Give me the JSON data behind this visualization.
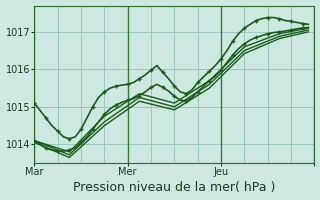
{
  "title": "Pression niveau de la mer( hPa )",
  "background_color": "#cce8e0",
  "grid_color": "#99c8c0",
  "line_color": "#1a5c1a",
  "marker_color": "#1a5c1a",
  "ylim": [
    1013.5,
    1017.7
  ],
  "xlim": [
    0,
    48
  ],
  "yticks": [
    1014,
    1015,
    1016,
    1017
  ],
  "xtick_positions": [
    0,
    16,
    32,
    48
  ],
  "xtick_labels": [
    "Mar",
    "Mer",
    "Jeu",
    ""
  ],
  "vline_positions": [
    0,
    16,
    32,
    48
  ],
  "series": [
    {
      "x": [
        0,
        1,
        2,
        3,
        4,
        5,
        6,
        7,
        8,
        9,
        10,
        11,
        12,
        13,
        14,
        15,
        16,
        17,
        18,
        19,
        20,
        21,
        22,
        23,
        24,
        25,
        26,
        27,
        28,
        29,
        30,
        31,
        32,
        33,
        34,
        35,
        36,
        37,
        38,
        39,
        40,
        41,
        42,
        43,
        44,
        45,
        46,
        47
      ],
      "y": [
        1015.1,
        1014.9,
        1014.7,
        1014.5,
        1014.35,
        1014.2,
        1014.15,
        1014.2,
        1014.4,
        1014.7,
        1015.0,
        1015.25,
        1015.4,
        1015.5,
        1015.55,
        1015.58,
        1015.6,
        1015.65,
        1015.75,
        1015.85,
        1015.98,
        1016.1,
        1015.92,
        1015.75,
        1015.55,
        1015.4,
        1015.35,
        1015.45,
        1015.65,
        1015.8,
        1015.95,
        1016.1,
        1016.28,
        1016.5,
        1016.75,
        1016.95,
        1017.1,
        1017.2,
        1017.3,
        1017.35,
        1017.38,
        1017.38,
        1017.35,
        1017.3,
        1017.28,
        1017.25,
        1017.22,
        1017.2
      ],
      "markers": true,
      "linewidth": 1.2
    },
    {
      "x": [
        0,
        1,
        2,
        3,
        4,
        5,
        6,
        7,
        8,
        9,
        10,
        11,
        12,
        13,
        14,
        15,
        16,
        17,
        18,
        19,
        20,
        21,
        22,
        23,
        24,
        25,
        26,
        27,
        28,
        29,
        30,
        31,
        32,
        33,
        34,
        35,
        36,
        37,
        38,
        39,
        40,
        41,
        42,
        43,
        44,
        45,
        46,
        47
      ],
      "y": [
        1014.1,
        1014.0,
        1013.9,
        1013.85,
        1013.82,
        1013.82,
        1013.85,
        1013.9,
        1014.05,
        1014.2,
        1014.4,
        1014.6,
        1014.8,
        1014.95,
        1015.05,
        1015.12,
        1015.18,
        1015.22,
        1015.3,
        1015.4,
        1015.52,
        1015.6,
        1015.52,
        1015.42,
        1015.28,
        1015.18,
        1015.15,
        1015.25,
        1015.4,
        1015.55,
        1015.7,
        1015.82,
        1015.98,
        1016.18,
        1016.38,
        1016.55,
        1016.68,
        1016.78,
        1016.85,
        1016.9,
        1016.95,
        1016.98,
        1017.0,
        1017.02,
        1017.05,
        1017.08,
        1017.1,
        1017.12
      ],
      "markers": true,
      "linewidth": 1.2
    },
    {
      "x": [
        0,
        6,
        12,
        18,
        24,
        30,
        36,
        42,
        47
      ],
      "y": [
        1014.1,
        1013.8,
        1014.75,
        1015.35,
        1015.1,
        1015.7,
        1016.6,
        1016.95,
        1017.1
      ],
      "markers": false,
      "linewidth": 1.0
    },
    {
      "x": [
        0,
        6,
        12,
        18,
        24,
        30,
        36,
        42,
        47
      ],
      "y": [
        1014.1,
        1013.72,
        1014.6,
        1015.25,
        1015.0,
        1015.6,
        1016.5,
        1016.88,
        1017.05
      ],
      "markers": false,
      "linewidth": 1.0
    },
    {
      "x": [
        0,
        6,
        12,
        18,
        24,
        30,
        36,
        42,
        47
      ],
      "y": [
        1014.05,
        1013.65,
        1014.5,
        1015.15,
        1014.92,
        1015.5,
        1016.42,
        1016.82,
        1017.0
      ],
      "markers": false,
      "linewidth": 1.0
    }
  ],
  "font_size_ticks": 7,
  "font_size_label": 9
}
